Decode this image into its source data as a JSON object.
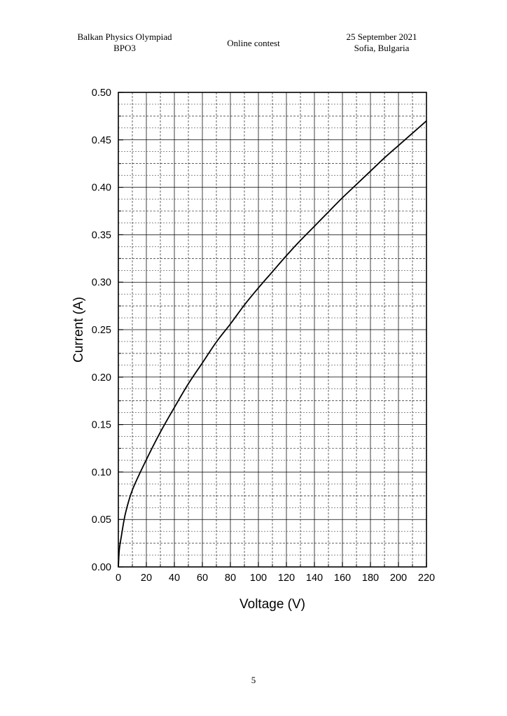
{
  "header": {
    "left_line1": "Balkan Physics Olympiad",
    "left_line2": "BPO3",
    "center": "Online contest",
    "right_line1": "25 September 2021",
    "right_line2": "Sofia, Bulgaria"
  },
  "footer": {
    "page_number": "5"
  },
  "chart_data": {
    "type": "line",
    "title": "",
    "xlabel": "Voltage (V)",
    "ylabel": "Current (A)",
    "xlim": [
      0,
      220
    ],
    "ylim": [
      0,
      0.5
    ],
    "x_ticks": [
      "0",
      "20",
      "40",
      "60",
      "80",
      "100",
      "120",
      "140",
      "160",
      "180",
      "200",
      "220"
    ],
    "y_ticks": [
      "0.00",
      "0.05",
      "0.10",
      "0.15",
      "0.20",
      "0.25",
      "0.30",
      "0.35",
      "0.40",
      "0.45",
      "0.50"
    ],
    "grid": "major solid, minor dashed",
    "series": [
      {
        "x": [
          0,
          0.5,
          1,
          2,
          5,
          10,
          20,
          30,
          40,
          50,
          60,
          70,
          80,
          90,
          100,
          110,
          120,
          130,
          140,
          150,
          160,
          170,
          180,
          190,
          200,
          210,
          220
        ],
        "y": [
          0,
          0.015,
          0.022,
          0.031,
          0.056,
          0.081,
          0.113,
          0.142,
          0.168,
          0.193,
          0.215,
          0.237,
          0.256,
          0.276,
          0.294,
          0.311,
          0.328,
          0.344,
          0.359,
          0.374,
          0.389,
          0.403,
          0.417,
          0.431,
          0.444,
          0.457,
          0.47
        ]
      }
    ]
  }
}
